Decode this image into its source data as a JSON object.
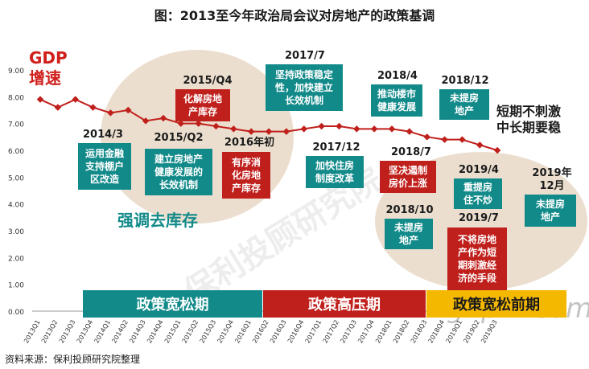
{
  "title": "图：2013至今年政治局会议对房地产的政策基调",
  "source": "资料来源：保利投顾研究院整理",
  "gdp_label_line1": "GDP",
  "gdp_label_line2": "增速",
  "stance_line1": "短期不刺激",
  "stance_line2": "中长期要稳",
  "destock_label": "强调去库存",
  "watermark": "保利投顾研究院",
  "site_watermark": "gdpm.com",
  "colors": {
    "teal": "#138a8a",
    "red": "#c0201c",
    "yellow": "#f5b800",
    "line": "#c0201c",
    "ellipse": "#e8d8c6"
  },
  "phases": [
    {
      "label": "政策宽松期",
      "color": "teal"
    },
    {
      "label": "政策高压期",
      "color": "red"
    },
    {
      "label": "政策宽松前期",
      "color": "yellow"
    }
  ],
  "events": [
    {
      "date": "2014/3",
      "text": "运用金融\n支持棚户\n区改造",
      "color": "teal"
    },
    {
      "date": "2015/Q2",
      "text": "建立房地产\n健康发展的\n长效机制",
      "color": "teal"
    },
    {
      "date": "2015/Q4",
      "text": "化解房地\n产库存",
      "color": "red"
    },
    {
      "date": "2016年初",
      "text": "有序消\n化房地\n产库存",
      "color": "red"
    },
    {
      "date": "2017/7",
      "text": "坚持政策稳定\n性，加快建立\n长效机制",
      "color": "teal"
    },
    {
      "date": "2017/12",
      "text": "加快住房\n制度改革",
      "color": "teal"
    },
    {
      "date": "2018/4",
      "text": "推动楼市\n健康发展",
      "color": "teal"
    },
    {
      "date": "2018/7",
      "text": "坚决遏制\n房价上涨",
      "color": "red"
    },
    {
      "date": "2018/10",
      "text": "未提房\n地产",
      "color": "teal"
    },
    {
      "date": "2018/12",
      "text": "未提房\n地产",
      "color": "teal"
    },
    {
      "date": "2019/4",
      "text": "重提房\n住不炒",
      "color": "teal"
    },
    {
      "date": "2019/7",
      "text": "不将房地\n产作为短\n期刺激经\n济的手段",
      "color": "red"
    },
    {
      "date": "2019年\n12月",
      "text": "未提房\n地产",
      "color": "teal"
    }
  ],
  "chart_data": {
    "type": "line",
    "title": "图：2013至今年政治局会议对房地产的政策基调",
    "ylabel": "GDP增速",
    "xlabel": "",
    "ylim": [
      0,
      9
    ],
    "y_ticks": [
      "0.00",
      "1.00",
      "2.00",
      "3.00",
      "4.00",
      "5.00",
      "6.00",
      "7.00",
      "8.00",
      "9.00"
    ],
    "grid": false,
    "categories": [
      "2013Q1",
      "2013Q2",
      "2013Q3",
      "2013Q4",
      "2014Q1",
      "2014Q2",
      "2014Q3",
      "2014Q4",
      "2015Q1",
      "2015Q2",
      "2015Q3",
      "2015Q4",
      "2016Q1",
      "2016Q2",
      "2016Q3",
      "2016Q4",
      "2017Q1",
      "2017Q2",
      "2017Q3",
      "2017Q4",
      "2018Q1",
      "2018Q2",
      "2018Q3",
      "2018Q4",
      "2019Q1",
      "2019Q2",
      "2019Q3"
    ],
    "series": [
      {
        "values": [
          7.9,
          7.6,
          7.9,
          7.6,
          7.4,
          7.5,
          7.1,
          7.2,
          7.0,
          7.0,
          6.9,
          6.8,
          6.7,
          6.7,
          6.7,
          6.8,
          6.9,
          6.9,
          6.8,
          6.8,
          6.8,
          6.7,
          6.5,
          6.4,
          6.4,
          6.2,
          6.0
        ]
      }
    ]
  }
}
